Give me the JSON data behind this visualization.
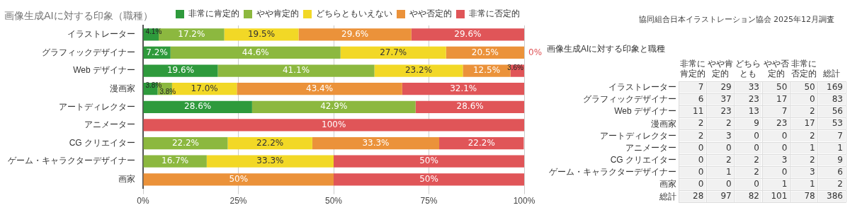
{
  "chart_data": [
    {
      "type": "bar",
      "orientation": "horizontal",
      "stacked": true,
      "title": "画像生成AIに対する印象（職種）",
      "annotations": [
        "協同組合日本イラストレーション協会 2025年12月調査"
      ],
      "categories": [
        "イラストレーター",
        "グラフィックデザイナー",
        "Web デザイナー",
        "漫画家",
        "アートディレクター",
        "アニメーター",
        "CG クリエイター",
        "ゲーム・キャラクターデザイナー",
        "画家"
      ],
      "series": [
        {
          "name": "非常に肯定的",
          "color": "#2e9a3c",
          "values": [
            4.1,
            7.2,
            19.6,
            3.8,
            28.6,
            0,
            0,
            0,
            0
          ],
          "value_labels": [
            "4.1%",
            "7.2%",
            "19.6%",
            "3.8%",
            "28.6%",
            null,
            null,
            null,
            null
          ]
        },
        {
          "name": "やや肯定的",
          "color": "#8cb83f",
          "values": [
            17.2,
            44.6,
            41.1,
            3.8,
            42.9,
            0,
            22.2,
            16.7,
            0
          ],
          "value_labels": [
            "17.2%",
            "44.6%",
            "41.1%",
            "3.8%",
            "42.9%",
            null,
            "22.2%",
            "16.7%",
            null
          ]
        },
        {
          "name": "どちらともいえない",
          "color": "#f2d826",
          "values": [
            19.5,
            27.7,
            23.2,
            17.0,
            0,
            0,
            22.2,
            33.3,
            0
          ],
          "value_labels": [
            "19.5%",
            "27.7%",
            "23.2%",
            "17.0%",
            null,
            null,
            "22.2%",
            "33.3%",
            null
          ]
        },
        {
          "name": "やや否定的",
          "color": "#eb923a",
          "values": [
            29.6,
            20.5,
            12.5,
            43.4,
            0,
            0,
            33.3,
            0,
            50
          ],
          "value_labels": [
            "29.6%",
            "20.5%",
            "12.5%",
            "43.4%",
            null,
            null,
            "33.3%",
            null,
            "50%"
          ]
        },
        {
          "name": "非常に否定的",
          "color": "#e05558",
          "values": [
            29.6,
            0,
            3.6,
            32.1,
            28.6,
            100,
            22.2,
            50,
            50
          ],
          "value_labels": [
            "29.6%",
            "0%",
            "3.6%",
            "32.1%",
            "28.6%",
            "100%",
            "22.2%",
            "50%",
            "50%"
          ]
        }
      ],
      "xlim": [
        0,
        100
      ],
      "xticks": [
        {
          "value": 0,
          "label": "0%"
        },
        {
          "value": 25,
          "label": "25%"
        },
        {
          "value": 50,
          "label": "50%"
        },
        {
          "value": 75,
          "label": "75%"
        },
        {
          "value": 100,
          "label": "100%"
        }
      ],
      "grid": "x",
      "legend": "top right"
    },
    {
      "type": "heatmap",
      "title": "画像生成AIに対する印象と職種",
      "data_labels": true,
      "categories": [
        "非常に肯定的",
        "やや肯定的",
        "どちらとも",
        "やや否定的",
        "非常に否定的",
        "総計"
      ],
      "y_categories": [
        "イラストレーター",
        "グラフィックデザイナー",
        "Web デザイナー",
        "漫画家",
        "アートディレクター",
        "アニメーター",
        "CG クリエイター",
        "ゲーム・キャラクターデザイナー",
        "画家",
        "総計"
      ],
      "cells": [
        [
          7,
          29,
          33,
          50,
          50,
          169
        ],
        [
          6,
          37,
          23,
          17,
          0,
          83
        ],
        [
          11,
          23,
          13,
          7,
          2,
          56
        ],
        [
          2,
          2,
          9,
          23,
          17,
          53
        ],
        [
          2,
          3,
          0,
          0,
          2,
          7
        ],
        [
          0,
          0,
          0,
          0,
          1,
          1
        ],
        [
          0,
          2,
          2,
          3,
          2,
          9
        ],
        [
          0,
          1,
          2,
          0,
          3,
          6
        ],
        [
          0,
          0,
          0,
          1,
          1,
          2
        ],
        [
          28,
          97,
          82,
          101,
          78,
          386
        ]
      ]
    }
  ]
}
